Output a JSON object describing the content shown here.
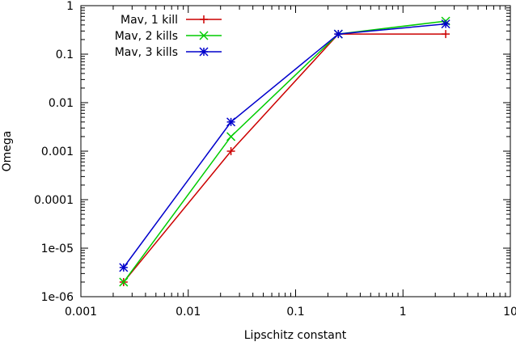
{
  "chart_data": {
    "type": "line",
    "xlabel": "Lipschitz constant",
    "ylabel": "Omega",
    "xscale": "log",
    "yscale": "log",
    "xlim": [
      0.001,
      10
    ],
    "ylim": [
      1e-06,
      1
    ],
    "grid": false,
    "legend_position": "top-left",
    "x_ticks": [
      {
        "value": 0.001,
        "label": "0.001"
      },
      {
        "value": 0.01,
        "label": "0.01"
      },
      {
        "value": 0.1,
        "label": "0.1"
      },
      {
        "value": 1,
        "label": "1"
      },
      {
        "value": 10,
        "label": "10"
      }
    ],
    "y_ticks": [
      {
        "value": 1e-06,
        "label": "1e-06"
      },
      {
        "value": 1e-05,
        "label": "1e-05"
      },
      {
        "value": 0.0001,
        "label": "0.0001"
      },
      {
        "value": 0.001,
        "label": "0.001"
      },
      {
        "value": 0.01,
        "label": "0.01"
      },
      {
        "value": 0.1,
        "label": "0.1"
      },
      {
        "value": 1,
        "label": "1"
      }
    ],
    "series": [
      {
        "name": "Mav, 1 kill",
        "color": "#cc0000",
        "marker": "plus",
        "x": [
          0.0025,
          0.025,
          0.25,
          2.5
        ],
        "y": [
          2e-06,
          0.001,
          0.26,
          0.26
        ]
      },
      {
        "name": "Mav, 2 kills",
        "color": "#00cc00",
        "marker": "cross",
        "x": [
          0.0025,
          0.025,
          0.25,
          2.5
        ],
        "y": [
          2e-06,
          0.002,
          0.26,
          0.48
        ]
      },
      {
        "name": "Mav, 3 kills",
        "color": "#0000cc",
        "marker": "star",
        "x": [
          0.0025,
          0.025,
          0.25,
          2.5
        ],
        "y": [
          4e-06,
          0.004,
          0.26,
          0.42
        ]
      }
    ]
  }
}
